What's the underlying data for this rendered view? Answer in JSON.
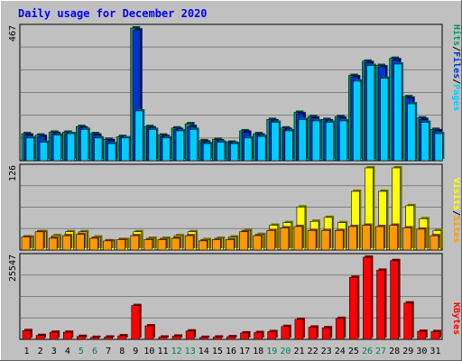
{
  "chart_data": [
    {
      "type": "bar",
      "title": "Daily usage for December 2020",
      "panel": "hits-files-pages",
      "categories": [
        "1",
        "2",
        "3",
        "4",
        "5",
        "6",
        "7",
        "8",
        "9",
        "10",
        "11",
        "12",
        "13",
        "14",
        "15",
        "16",
        "17",
        "18",
        "19",
        "20",
        "21",
        "22",
        "23",
        "24",
        "25",
        "26",
        "27",
        "28",
        "29",
        "30",
        "31"
      ],
      "ymax_label": "467",
      "ylim": [
        0,
        467
      ],
      "grid": true,
      "series": [
        {
          "name": "Hits",
          "color": "#009966",
          "values": [
            95,
            90,
            100,
            100,
            120,
            95,
            75,
            85,
            467,
            120,
            90,
            115,
            130,
            70,
            75,
            65,
            105,
            95,
            145,
            115,
            170,
            155,
            145,
            155,
            300,
            350,
            335,
            360,
            225,
            150,
            110
          ]
        },
        {
          "name": "Files",
          "color": "#0033cc",
          "values": [
            90,
            85,
            95,
            95,
            115,
            90,
            70,
            80,
            460,
            115,
            85,
            110,
            120,
            65,
            70,
            62,
            100,
            90,
            140,
            110,
            165,
            150,
            140,
            150,
            295,
            345,
            330,
            355,
            220,
            145,
            105
          ]
        },
        {
          "name": "Pages",
          "color": "#00ccff",
          "values": [
            80,
            65,
            90,
            95,
            110,
            80,
            60,
            80,
            175,
            110,
            80,
            105,
            110,
            60,
            65,
            60,
            80,
            85,
            135,
            105,
            145,
            140,
            135,
            140,
            280,
            335,
            290,
            340,
            200,
            135,
            95
          ]
        }
      ],
      "legend": [
        "Pages",
        "Files",
        "Hits"
      ]
    },
    {
      "type": "bar",
      "panel": "visits-sites",
      "categories": [
        "1",
        "2",
        "3",
        "4",
        "5",
        "6",
        "7",
        "8",
        "9",
        "10",
        "11",
        "12",
        "13",
        "14",
        "15",
        "16",
        "17",
        "18",
        "19",
        "20",
        "21",
        "22",
        "23",
        "24",
        "25",
        "26",
        "27",
        "28",
        "29",
        "30",
        "31"
      ],
      "ymax_label": "126",
      "ylim": [
        0,
        126
      ],
      "grid": true,
      "series": [
        {
          "name": "Visits",
          "color": "#ffff00",
          "values": [
            20,
            28,
            22,
            28,
            28,
            20,
            14,
            16,
            28,
            18,
            18,
            22,
            28,
            16,
            18,
            20,
            30,
            24,
            38,
            42,
            66,
            44,
            50,
            42,
            90,
            126,
            90,
            126,
            68,
            48,
            30
          ]
        },
        {
          "name": "Sites",
          "color": "#ff9900",
          "values": [
            20,
            28,
            18,
            22,
            24,
            18,
            14,
            16,
            22,
            16,
            16,
            18,
            22,
            14,
            16,
            16,
            28,
            22,
            30,
            34,
            36,
            30,
            30,
            30,
            36,
            38,
            36,
            38,
            34,
            32,
            22
          ]
        }
      ],
      "legend": [
        "Sites",
        "Visits"
      ]
    },
    {
      "type": "bar",
      "panel": "kbytes",
      "categories": [
        "1",
        "2",
        "3",
        "4",
        "5",
        "6",
        "7",
        "8",
        "9",
        "10",
        "11",
        "12",
        "13",
        "14",
        "15",
        "16",
        "17",
        "18",
        "19",
        "20",
        "21",
        "22",
        "23",
        "24",
        "25",
        "26",
        "27",
        "28",
        "29",
        "30",
        "31"
      ],
      "ymax_label": "25547",
      "ylim": [
        0,
        25547
      ],
      "grid": true,
      "series": [
        {
          "name": "KBytes",
          "color": "#ff0000",
          "values": [
            2700,
            1200,
            2200,
            2200,
            900,
            600,
            700,
            1100,
            10500,
            4200,
            700,
            1000,
            2600,
            600,
            700,
            800,
            2000,
            2100,
            2400,
            4000,
            6200,
            3800,
            3600,
            6500,
            19300,
            25547,
            21500,
            24500,
            11300,
            2500,
            2400
          ]
        }
      ],
      "legend": [
        "KBytes"
      ]
    }
  ],
  "axis": {
    "x_labels": [
      "1",
      "2",
      "3",
      "4",
      "5",
      "6",
      "7",
      "8",
      "9",
      "10",
      "11",
      "12",
      "13",
      "14",
      "15",
      "16",
      "17",
      "18",
      "19",
      "20",
      "21",
      "22",
      "23",
      "24",
      "25",
      "26",
      "27",
      "28",
      "29",
      "30",
      "31"
    ],
    "weekend_days": [
      5,
      6,
      12,
      13,
      19,
      20,
      26,
      27
    ],
    "weekday_color": "#000000",
    "weekend_color": "#00805c"
  },
  "colors": {
    "background": "#c0c0c0",
    "title": "#0000ff",
    "slash": "#000000"
  }
}
